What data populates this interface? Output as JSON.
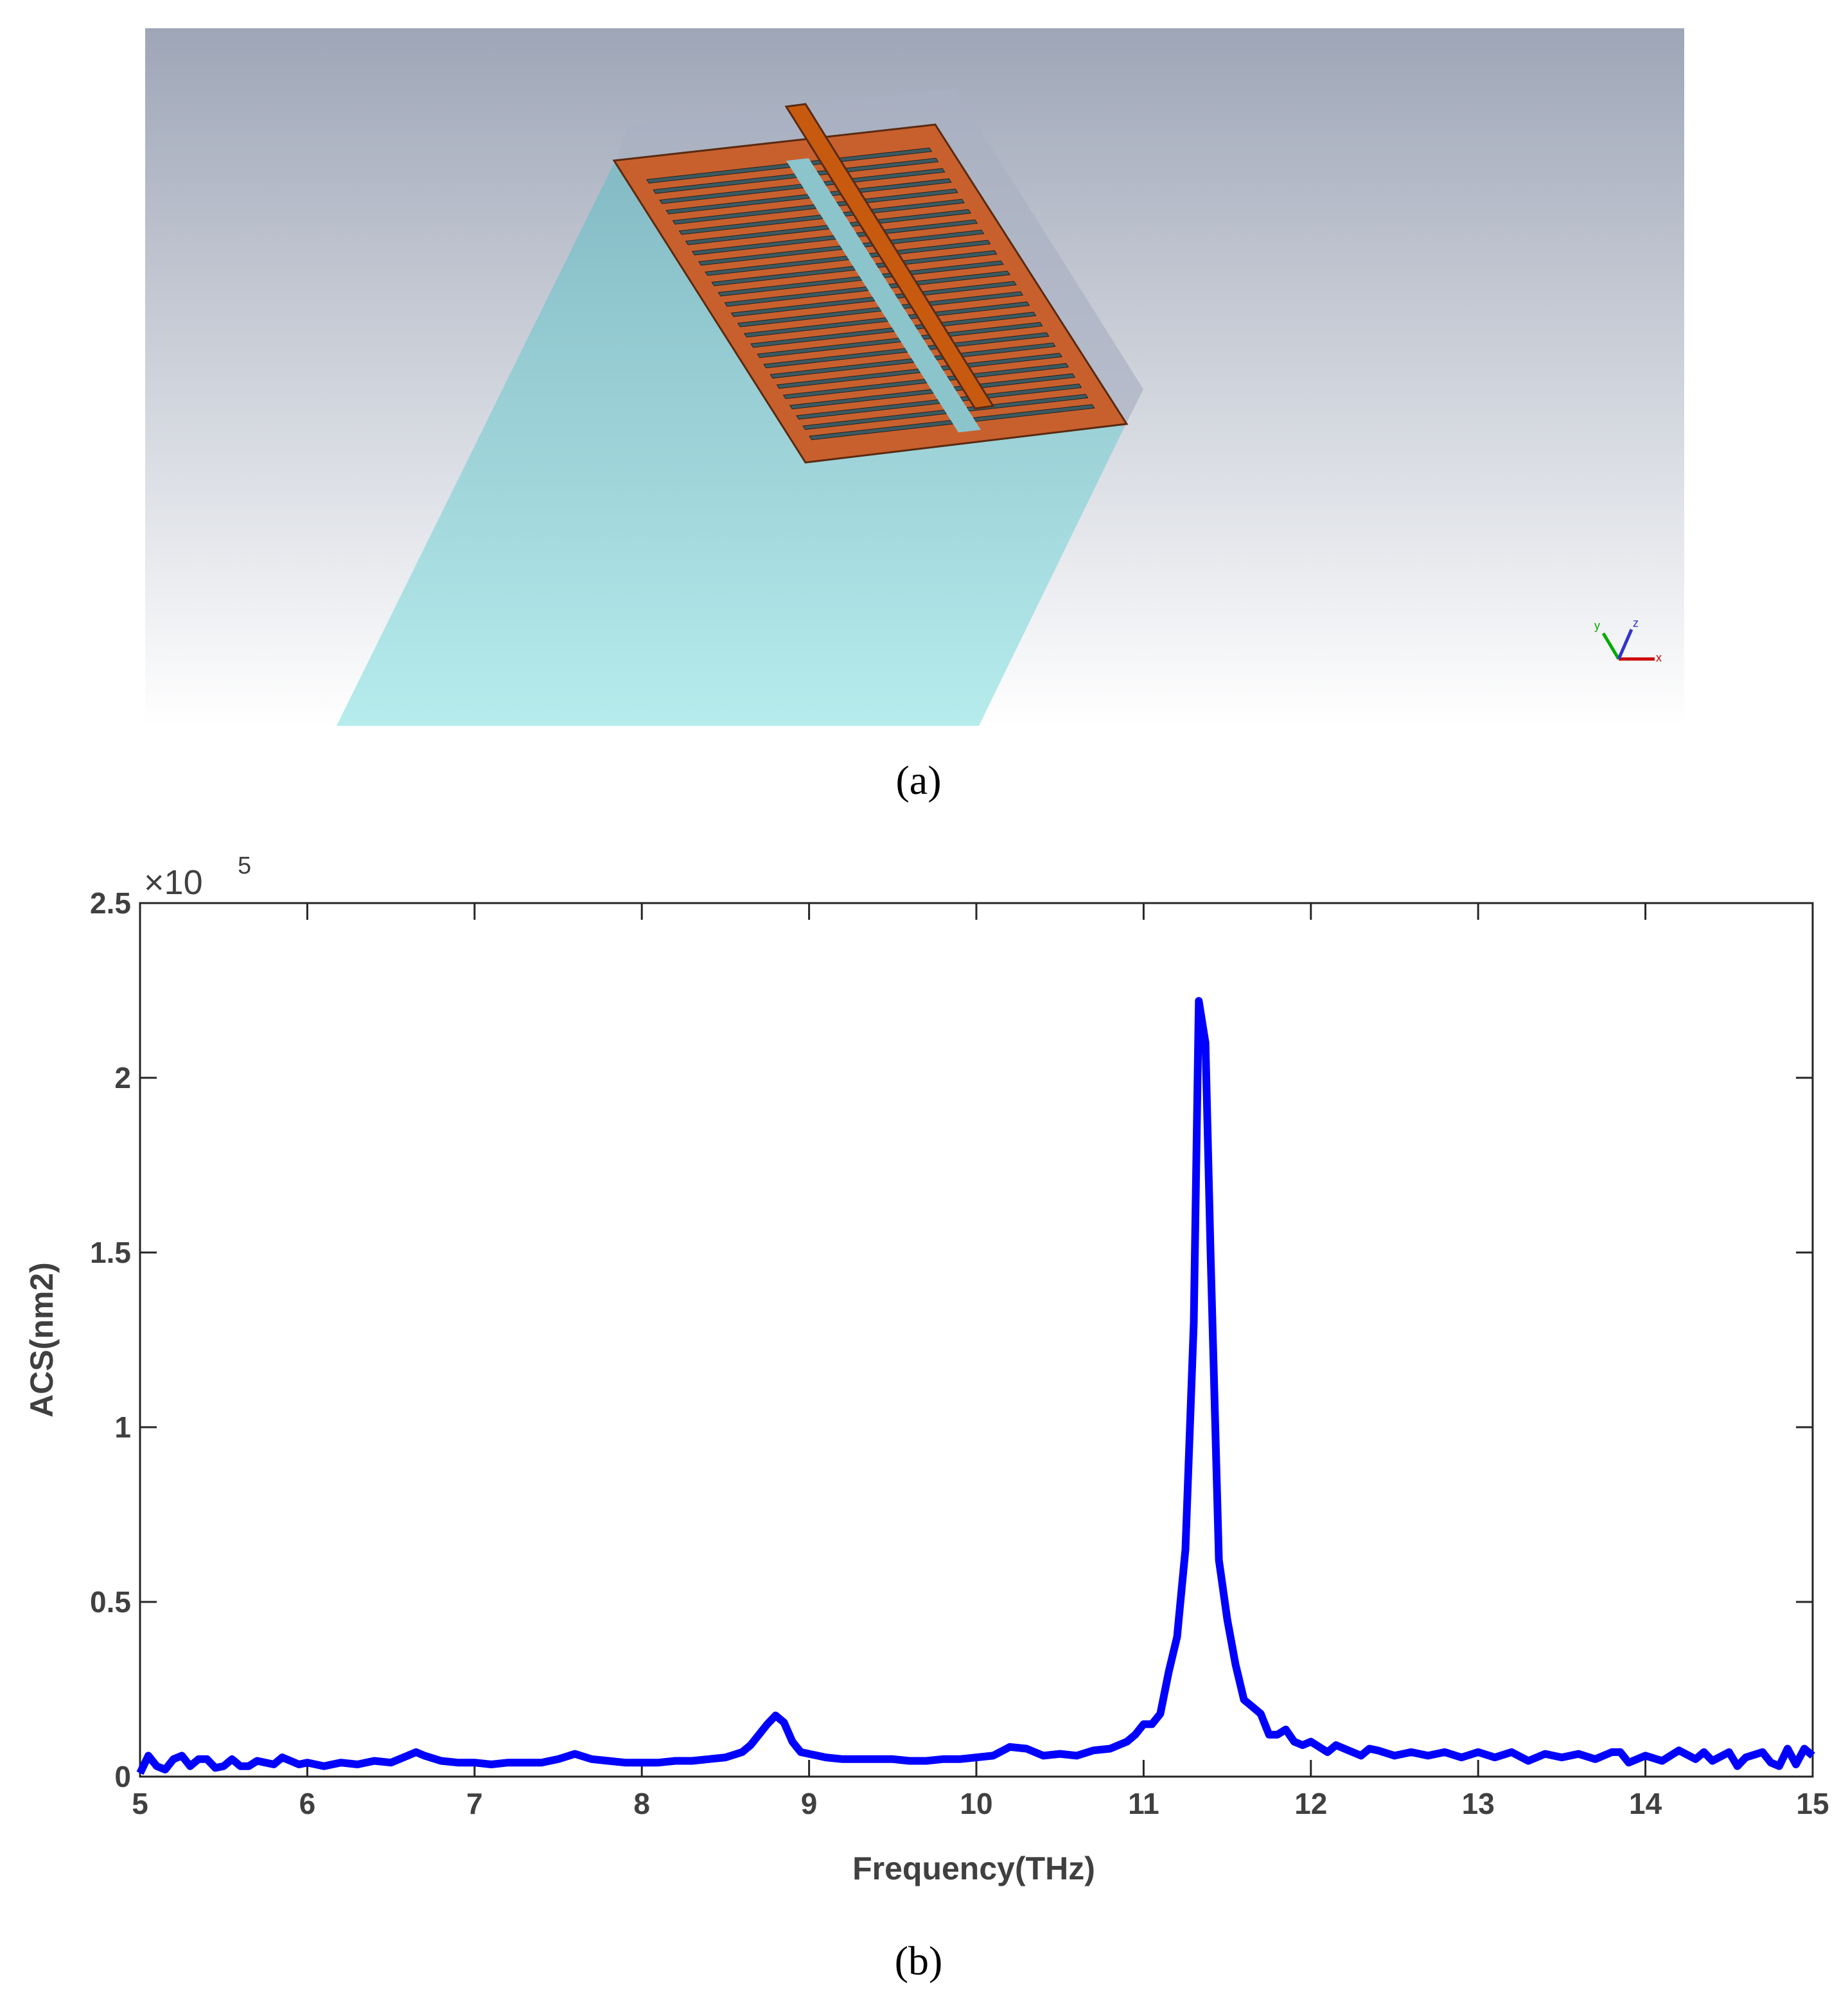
{
  "captions": [
    "(a)",
    "(b)"
  ],
  "triad": {
    "x": "x",
    "y": "y",
    "z": "z"
  },
  "chart_data": {
    "type": "line",
    "xlabel": "Frequency(THz)",
    "ylabel": "ACS(nm2)",
    "y_multiplier": {
      "base": "×10",
      "exponent": "5"
    },
    "color": "#0000ff",
    "xlim": [
      5,
      15
    ],
    "xticks": [
      5,
      6,
      7,
      8,
      9,
      10,
      11,
      12,
      13,
      14,
      15
    ],
    "ylim": [
      0,
      2.5
    ],
    "yticks": [
      0,
      0.5,
      1,
      1.5,
      2,
      2.5
    ],
    "x": [
      5.0,
      5.05,
      5.1,
      5.15,
      5.2,
      5.25,
      5.3,
      5.35,
      5.4,
      5.45,
      5.5,
      5.55,
      5.6,
      5.65,
      5.7,
      5.75,
      5.8,
      5.85,
      5.9,
      5.95,
      6.0,
      6.1,
      6.2,
      6.3,
      6.4,
      6.5,
      6.6,
      6.65,
      6.7,
      6.8,
      6.9,
      7.0,
      7.1,
      7.2,
      7.3,
      7.4,
      7.5,
      7.6,
      7.7,
      7.8,
      7.9,
      8.0,
      8.1,
      8.2,
      8.3,
      8.4,
      8.5,
      8.6,
      8.65,
      8.7,
      8.75,
      8.8,
      8.85,
      8.9,
      8.95,
      9.0,
      9.1,
      9.2,
      9.3,
      9.4,
      9.5,
      9.6,
      9.7,
      9.8,
      9.9,
      10.0,
      10.1,
      10.2,
      10.3,
      10.4,
      10.5,
      10.6,
      10.7,
      10.8,
      10.85,
      10.9,
      10.95,
      11.0,
      11.05,
      11.1,
      11.15,
      11.2,
      11.25,
      11.3,
      11.33,
      11.37,
      11.4,
      11.45,
      11.5,
      11.55,
      11.6,
      11.65,
      11.7,
      11.75,
      11.8,
      11.85,
      11.9,
      11.95,
      12.0,
      12.1,
      12.15,
      12.2,
      12.3,
      12.35,
      12.4,
      12.5,
      12.6,
      12.7,
      12.8,
      12.9,
      13.0,
      13.1,
      13.2,
      13.3,
      13.4,
      13.5,
      13.6,
      13.7,
      13.8,
      13.85,
      13.9,
      14.0,
      14.1,
      14.2,
      14.3,
      14.35,
      14.4,
      14.5,
      14.55,
      14.6,
      14.7,
      14.75,
      14.8,
      14.85,
      14.9,
      14.95,
      15.0
    ],
    "values": [
      0.01,
      0.06,
      0.03,
      0.02,
      0.05,
      0.06,
      0.03,
      0.05,
      0.05,
      0.025,
      0.03,
      0.05,
      0.03,
      0.03,
      0.045,
      0.04,
      0.035,
      0.055,
      0.045,
      0.035,
      0.04,
      0.03,
      0.04,
      0.035,
      0.045,
      0.04,
      0.06,
      0.07,
      0.06,
      0.045,
      0.04,
      0.04,
      0.035,
      0.04,
      0.04,
      0.04,
      0.05,
      0.065,
      0.05,
      0.045,
      0.04,
      0.04,
      0.04,
      0.045,
      0.045,
      0.05,
      0.055,
      0.07,
      0.09,
      0.12,
      0.15,
      0.175,
      0.155,
      0.1,
      0.07,
      0.065,
      0.055,
      0.05,
      0.05,
      0.05,
      0.05,
      0.045,
      0.045,
      0.05,
      0.05,
      0.055,
      0.06,
      0.085,
      0.08,
      0.06,
      0.065,
      0.06,
      0.075,
      0.08,
      0.09,
      0.1,
      0.12,
      0.15,
      0.15,
      0.18,
      0.3,
      0.4,
      0.65,
      1.3,
      2.22,
      2.1,
      1.5,
      0.62,
      0.45,
      0.32,
      0.22,
      0.2,
      0.18,
      0.12,
      0.12,
      0.135,
      0.1,
      0.09,
      0.1,
      0.07,
      0.09,
      0.08,
      0.06,
      0.08,
      0.075,
      0.06,
      0.07,
      0.06,
      0.07,
      0.055,
      0.07,
      0.055,
      0.07,
      0.045,
      0.065,
      0.055,
      0.065,
      0.05,
      0.07,
      0.07,
      0.04,
      0.06,
      0.045,
      0.075,
      0.05,
      0.07,
      0.045,
      0.07,
      0.03,
      0.055,
      0.07,
      0.04,
      0.03,
      0.08,
      0.035,
      0.08,
      0.06
    ]
  }
}
